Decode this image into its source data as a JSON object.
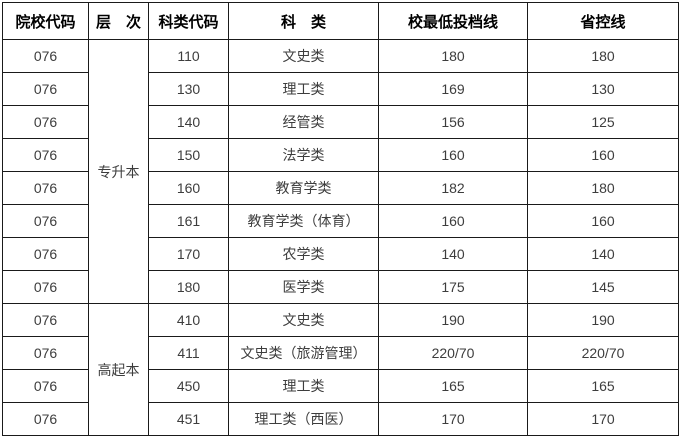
{
  "table": {
    "headers": {
      "institution_code": "院校代码",
      "level": "层　次",
      "subject_code": "科类代码",
      "subject": "科　类",
      "school_min_line": "校最低投档线",
      "province_line": "省控线"
    },
    "rows": [
      {
        "code": "076",
        "level": "专升本",
        "level_span": 8,
        "subj_code": "110",
        "subject": "文史类",
        "school_line": "180",
        "prov_line": "180"
      },
      {
        "code": "076",
        "subj_code": "130",
        "subject": "理工类",
        "school_line": "169",
        "prov_line": "130"
      },
      {
        "code": "076",
        "subj_code": "140",
        "subject": "经管类",
        "school_line": "156",
        "prov_line": "125"
      },
      {
        "code": "076",
        "subj_code": "150",
        "subject": "法学类",
        "school_line": "160",
        "prov_line": "160"
      },
      {
        "code": "076",
        "subj_code": "160",
        "subject": "教育学类",
        "school_line": "182",
        "prov_line": "180"
      },
      {
        "code": "076",
        "subj_code": "161",
        "subject": "教育学类（体育）",
        "school_line": "160",
        "prov_line": "160"
      },
      {
        "code": "076",
        "subj_code": "170",
        "subject": "农学类",
        "school_line": "140",
        "prov_line": "140"
      },
      {
        "code": "076",
        "subj_code": "180",
        "subject": "医学类",
        "school_line": "175",
        "prov_line": "145"
      },
      {
        "code": "076",
        "level": "高起本",
        "level_span": 4,
        "subj_code": "410",
        "subject": "文史类",
        "school_line": "190",
        "prov_line": "190"
      },
      {
        "code": "076",
        "subj_code": "411",
        "subject": "文史类（旅游管理）",
        "school_line": "220/70",
        "prov_line": "220/70"
      },
      {
        "code": "076",
        "subj_code": "450",
        "subject": "理工类",
        "school_line": "165",
        "prov_line": "165"
      },
      {
        "code": "076",
        "subj_code": "451",
        "subject": "理工类（西医）",
        "school_line": "170",
        "prov_line": "170"
      }
    ]
  },
  "colors": {
    "border": "#1a1a1a",
    "header_text": "#000000",
    "cell_text": "#3d3d3d",
    "background": "#ffffff"
  }
}
